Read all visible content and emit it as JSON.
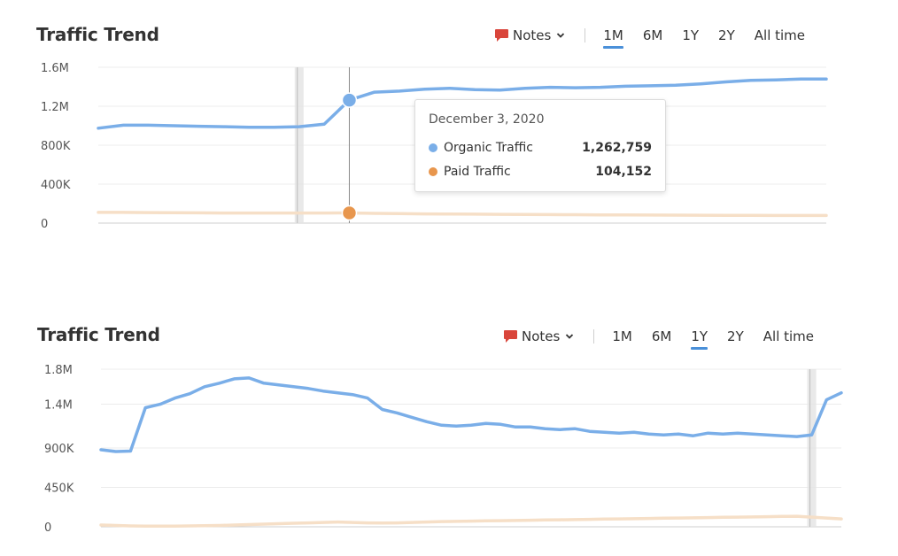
{
  "colors": {
    "organic": "#7aaee8",
    "paid_line": "#f6dfc7",
    "paid_marker": "#e8964d",
    "grid": "#ececec",
    "note_band": "#e3e3e3",
    "notes_icon": "#d9453b",
    "accent": "#4a90d9"
  },
  "panel1": {
    "title": "Traffic Trend",
    "notes_label": "Notes",
    "ranges": [
      "1M",
      "6M",
      "1Y",
      "2Y",
      "All time"
    ],
    "active_range": "1M",
    "tooltip": {
      "date": "December 3, 2020",
      "rows": [
        {
          "name": "Organic Traffic",
          "value": "1,262,759"
        },
        {
          "name": "Paid Traffic",
          "value": "104,152"
        }
      ]
    }
  },
  "panel2": {
    "title": "Traffic Trend",
    "notes_label": "Notes",
    "ranges": [
      "1M",
      "6M",
      "1Y",
      "2Y",
      "All time"
    ],
    "active_range": "1Y"
  },
  "chart_data": [
    {
      "type": "line",
      "title": "Traffic Trend",
      "ylim": [
        0,
        1600000
      ],
      "y_ticks": [
        0,
        400000,
        800000,
        1200000,
        1600000
      ],
      "y_tick_labels": [
        "0",
        "400K",
        "800K",
        "1.2M",
        "1.6M"
      ],
      "grid": true,
      "x": [
        0,
        1,
        2,
        3,
        4,
        5,
        6,
        7,
        8,
        9,
        10,
        11,
        12,
        13,
        14,
        15,
        16,
        17,
        18,
        19,
        20,
        21,
        22,
        23,
        24,
        25,
        26,
        27,
        28,
        29
      ],
      "highlight_index": 10,
      "note_index": 8,
      "series": [
        {
          "name": "Organic Traffic",
          "values": [
            975000,
            1005000,
            1005000,
            1000000,
            995000,
            990000,
            985000,
            985000,
            990000,
            1015000,
            1262759,
            1345000,
            1355000,
            1375000,
            1385000,
            1370000,
            1365000,
            1385000,
            1395000,
            1390000,
            1395000,
            1405000,
            1410000,
            1415000,
            1430000,
            1450000,
            1465000,
            1470000,
            1480000,
            1480000
          ]
        },
        {
          "name": "Paid Traffic",
          "values": [
            110000,
            110000,
            108000,
            106000,
            105000,
            104000,
            104000,
            104000,
            104000,
            104000,
            104152,
            100000,
            98000,
            95000,
            93000,
            92000,
            90000,
            88000,
            87000,
            86000,
            85000,
            84000,
            83000,
            82000,
            81000,
            80000,
            79000,
            78000,
            78000,
            78000
          ]
        }
      ]
    },
    {
      "type": "line",
      "title": "Traffic Trend",
      "ylim": [
        0,
        1800000
      ],
      "y_ticks": [
        0,
        450000,
        900000,
        1400000,
        1800000
      ],
      "y_tick_labels": [
        "0",
        "450K",
        "900K",
        "1.4M",
        "1.8M"
      ],
      "grid": true,
      "x": [
        0,
        1,
        2,
        3,
        4,
        5,
        6,
        7,
        8,
        9,
        10,
        11,
        12,
        13,
        14,
        15,
        16,
        17,
        18,
        19,
        20,
        21,
        22,
        23,
        24,
        25,
        26,
        27,
        28,
        29,
        30,
        31,
        32,
        33,
        34,
        35,
        36,
        37,
        38,
        39,
        40,
        41,
        42,
        43,
        44,
        45,
        46,
        47,
        48,
        49,
        50
      ],
      "note_index": 48,
      "series": [
        {
          "name": "Organic Traffic",
          "values": [
            880000,
            860000,
            865000,
            1360000,
            1400000,
            1470000,
            1520000,
            1600000,
            1640000,
            1690000,
            1700000,
            1640000,
            1620000,
            1600000,
            1580000,
            1550000,
            1530000,
            1510000,
            1470000,
            1340000,
            1300000,
            1250000,
            1200000,
            1160000,
            1150000,
            1160000,
            1180000,
            1170000,
            1140000,
            1140000,
            1120000,
            1110000,
            1120000,
            1090000,
            1080000,
            1070000,
            1080000,
            1060000,
            1050000,
            1060000,
            1040000,
            1070000,
            1060000,
            1070000,
            1060000,
            1050000,
            1040000,
            1030000,
            1050000,
            1450000,
            1530000
          ]
        },
        {
          "name": "Paid Traffic",
          "values": [
            20000,
            15000,
            10000,
            8000,
            8000,
            8000,
            10000,
            12000,
            15000,
            20000,
            25000,
            30000,
            35000,
            40000,
            45000,
            50000,
            55000,
            50000,
            45000,
            42000,
            45000,
            50000,
            55000,
            60000,
            62000,
            65000,
            68000,
            70000,
            72000,
            75000,
            78000,
            80000,
            82000,
            85000,
            88000,
            90000,
            92000,
            95000,
            98000,
            100000,
            102000,
            105000,
            108000,
            110000,
            112000,
            115000,
            118000,
            120000,
            110000,
            100000,
            90000
          ]
        }
      ]
    }
  ]
}
